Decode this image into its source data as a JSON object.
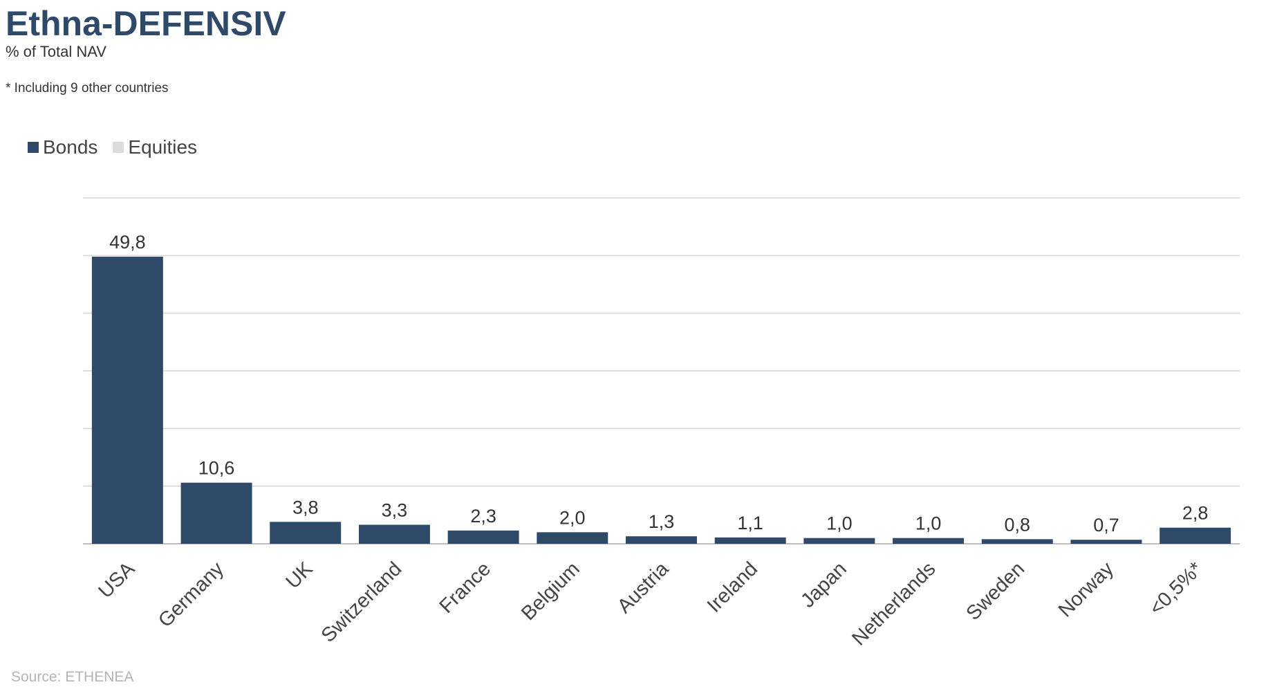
{
  "title": "Ethna-DEFENSIV",
  "subtitle": "% of Total NAV",
  "footnote": "* Including 9 other countries",
  "source": "Source: ETHENEA",
  "legend": [
    {
      "label": "Bonds",
      "color": "#2e4a68"
    },
    {
      "label": "Equities",
      "color": "#dcdcdc"
    }
  ],
  "chart_data": {
    "type": "bar",
    "stacked": true,
    "categories": [
      "USA",
      "Germany",
      "UK",
      "Switzerland",
      "France",
      "Belgium",
      "Austria",
      "Ireland",
      "Japan",
      "Netherlands",
      "Sweden",
      "Norway",
      "<0,5%*"
    ],
    "series": [
      {
        "name": "Bonds",
        "color": "#2e4a68",
        "values": [
          49.8,
          10.6,
          3.8,
          3.3,
          2.3,
          2.0,
          1.3,
          1.1,
          1.0,
          1.0,
          0.8,
          0.7,
          2.8
        ]
      },
      {
        "name": "Equities",
        "color": "#dcdcdc",
        "values": [
          0,
          0,
          0,
          0,
          0,
          0,
          0,
          0,
          0,
          0,
          0,
          0,
          0
        ]
      }
    ],
    "data_labels": [
      "49,8",
      "10,6",
      "3,8",
      "3,3",
      "2,3",
      "2,0",
      "1,3",
      "1,1",
      "1,0",
      "1,0",
      "0,8",
      "0,7",
      "2,8"
    ],
    "ylim": [
      0,
      60
    ],
    "y_gridlines": [
      10,
      20,
      30,
      40,
      50,
      60
    ],
    "y_tick_labels_shown": false,
    "grid": true,
    "legend_position": "top-left",
    "xlabel": "",
    "ylabel": ""
  }
}
